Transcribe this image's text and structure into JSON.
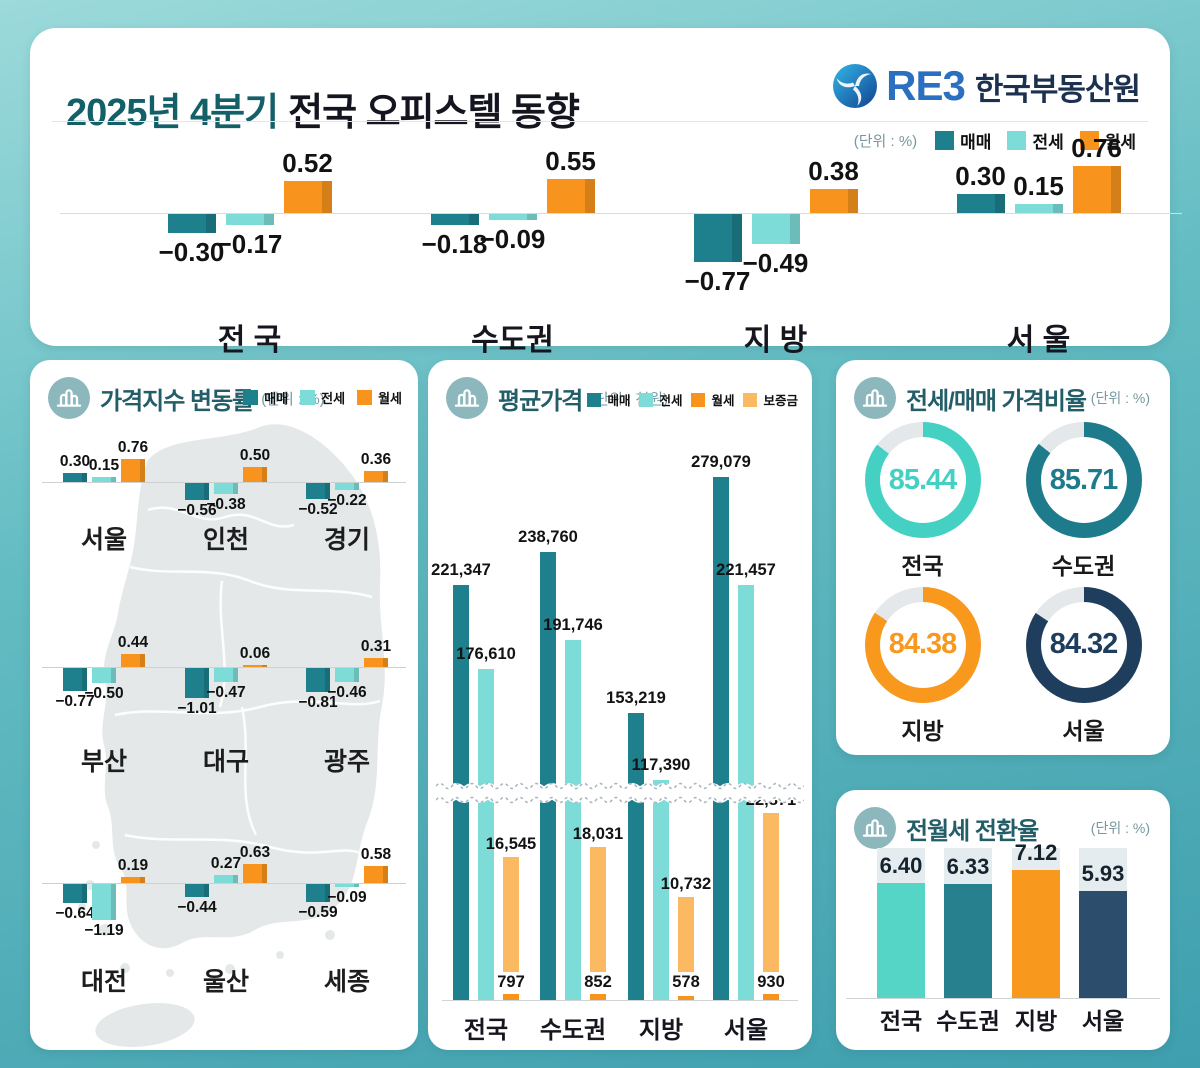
{
  "header": {
    "title_highlight": "2025년 4분기",
    "title_rest": "전국 오피스텔 동향",
    "logo_text": "RE3",
    "logo_org": "한국부동산원"
  },
  "legend_labels": {
    "sale": "매매",
    "jeonse": "전세",
    "wolse": "월세",
    "deposit": "보증금"
  },
  "colors": {
    "sale": "#1e7f8d",
    "jeonse": "#7edcd8",
    "wolse": "#f8941d",
    "deposit": "#fbb961",
    "track": "#e5ecef"
  },
  "chart_data": [
    {
      "id": "summary",
      "type": "bar",
      "title": "2025년 4분기 전국 오피스텔 동향",
      "unit": "(단위 : %)",
      "series_names": [
        "매매",
        "전세",
        "월세"
      ],
      "categories": [
        "전 국",
        "수도권",
        "지 방",
        "서 울"
      ],
      "series": [
        {
          "name": "매매",
          "values": [
            -0.3,
            -0.18,
            -0.77,
            0.3
          ]
        },
        {
          "name": "전세",
          "values": [
            -0.17,
            -0.09,
            -0.49,
            0.15
          ]
        },
        {
          "name": "월세",
          "values": [
            0.52,
            0.55,
            0.38,
            0.76
          ]
        }
      ]
    },
    {
      "id": "price_index",
      "type": "bar",
      "title": "가격지수 변동률",
      "unit": "(단위 : %)",
      "series_names": [
        "매매",
        "전세",
        "월세"
      ],
      "regions": [
        {
          "name": "서울",
          "values": [
            0.3,
            0.15,
            0.76
          ]
        },
        {
          "name": "인천",
          "values": [
            -0.56,
            -0.38,
            0.5
          ]
        },
        {
          "name": "경기",
          "values": [
            -0.52,
            -0.22,
            0.36
          ]
        },
        {
          "name": "부산",
          "values": [
            -0.77,
            -0.5,
            0.44
          ]
        },
        {
          "name": "대구",
          "values": [
            -1.01,
            -0.47,
            0.06
          ]
        },
        {
          "name": "광주",
          "values": [
            -0.81,
            -0.46,
            0.31
          ]
        },
        {
          "name": "대전",
          "values": [
            -0.64,
            -1.19,
            0.19
          ]
        },
        {
          "name": "울산",
          "values": [
            -0.44,
            0.27,
            0.63
          ]
        },
        {
          "name": "세종",
          "values": [
            -0.59,
            -0.09,
            0.58
          ]
        }
      ]
    },
    {
      "id": "avg_price",
      "type": "bar",
      "title": "평균가격",
      "unit": "(단위 : 천원)",
      "axis_break": true,
      "series_names": [
        "매매",
        "전세",
        "월세",
        "보증금"
      ],
      "categories": [
        "전국",
        "수도권",
        "지방",
        "서울"
      ],
      "series": [
        {
          "name": "매매",
          "values": [
            221347,
            238760,
            153219,
            279079
          ]
        },
        {
          "name": "전세",
          "values": [
            176610,
            191746,
            117390,
            221457
          ]
        },
        {
          "name": "월세",
          "values": [
            797,
            852,
            578,
            930
          ]
        },
        {
          "name": "보증금",
          "values": [
            16545,
            18031,
            10732,
            22871
          ]
        }
      ]
    },
    {
      "id": "jeonse_ratio",
      "type": "donut",
      "title": "전세/매매 가격비율",
      "unit": "(단위 : %)",
      "items": [
        {
          "label": "전국",
          "value": 85.44,
          "color": "#45d0c4"
        },
        {
          "label": "수도권",
          "value": 85.71,
          "color": "#1e7b8c"
        },
        {
          "label": "지방",
          "value": 84.38,
          "color": "#f8981d"
        },
        {
          "label": "서울",
          "value": 84.32,
          "color": "#1f3e5e"
        }
      ]
    },
    {
      "id": "conversion",
      "type": "bar",
      "title": "전월세 전환율",
      "unit": "(단위 : %)",
      "items": [
        {
          "label": "전국",
          "value": 6.4,
          "color": "#55d5c6"
        },
        {
          "label": "수도권",
          "value": 6.33,
          "color": "#26808d"
        },
        {
          "label": "지방",
          "value": 7.12,
          "color": "#f8981d"
        },
        {
          "label": "서울",
          "value": 5.93,
          "color": "#2c4d6c"
        }
      ]
    }
  ]
}
